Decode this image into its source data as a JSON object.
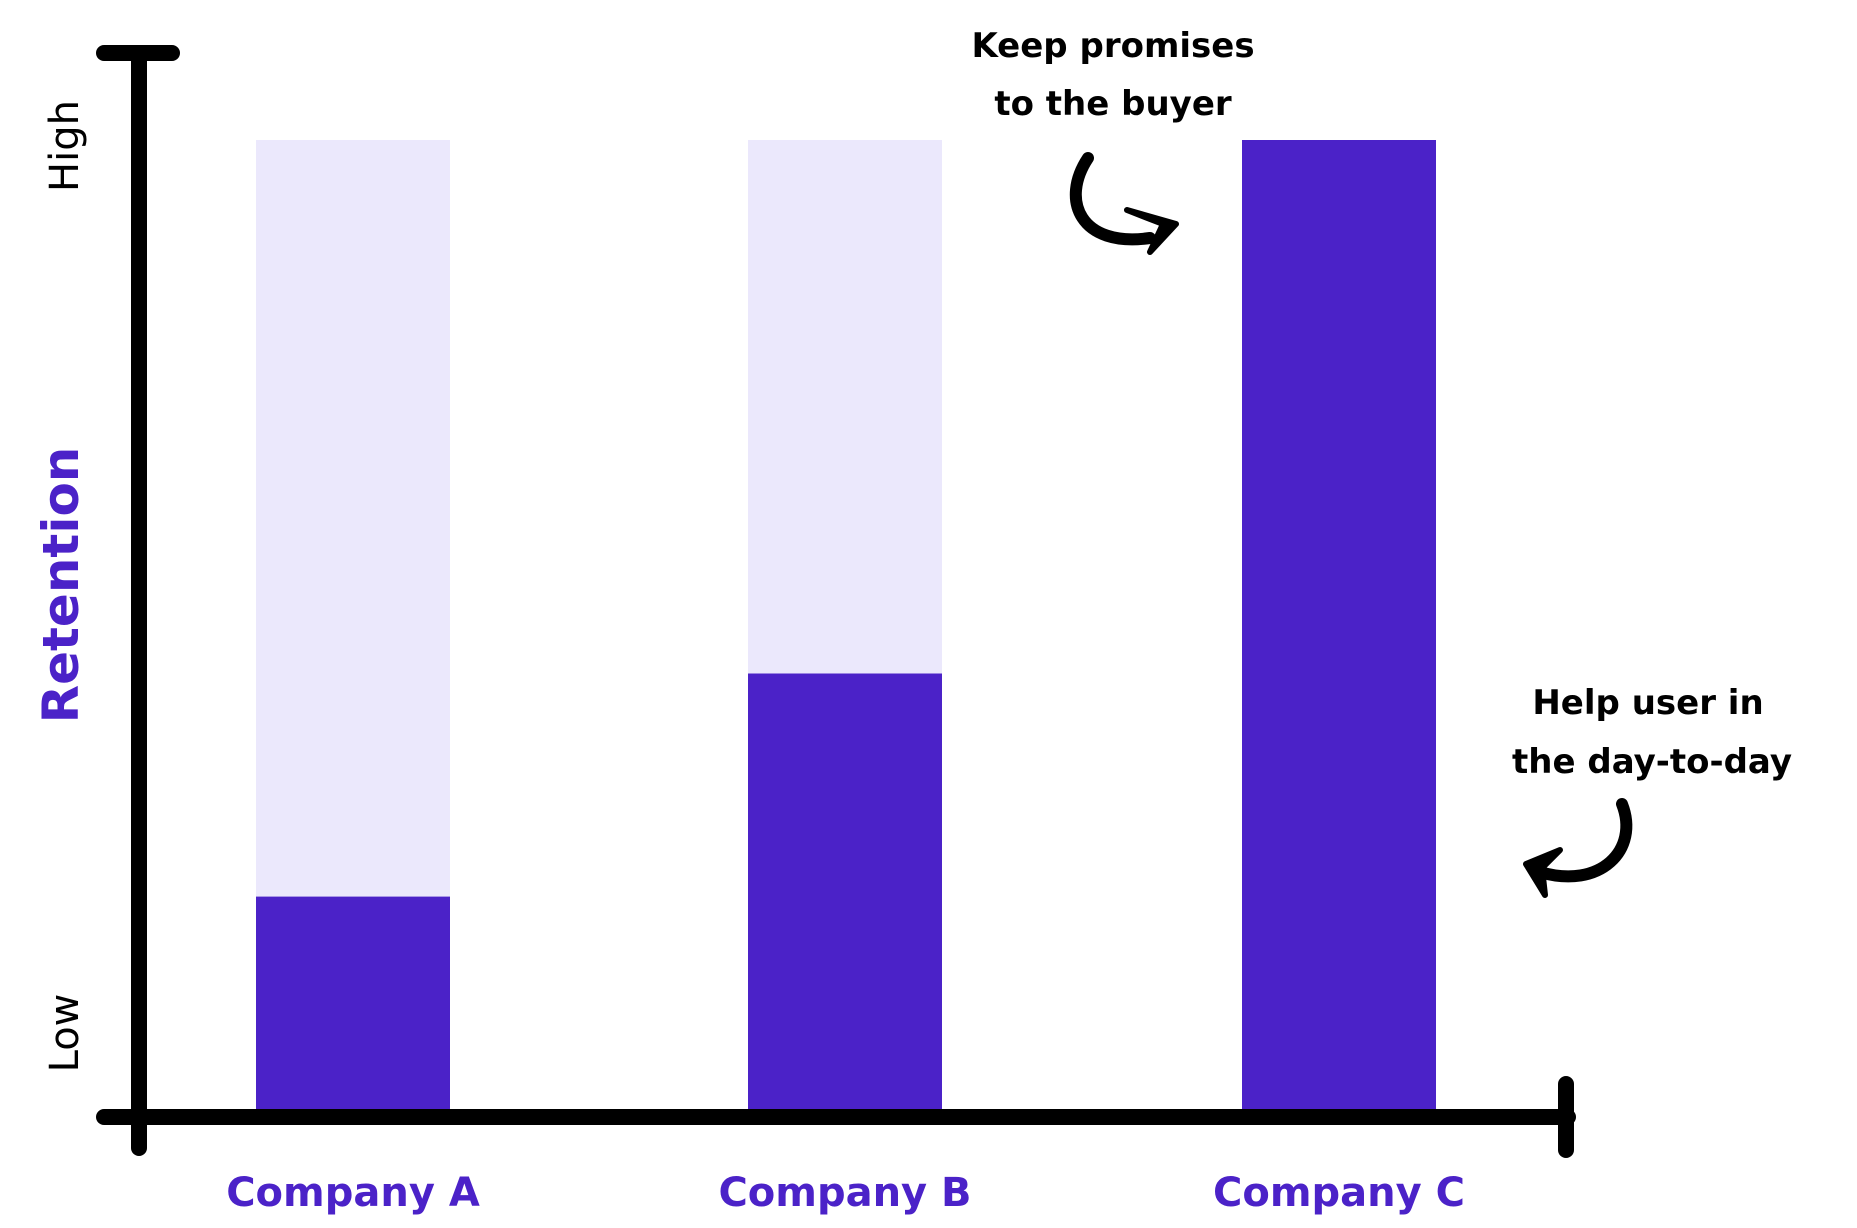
{
  "colors": {
    "bar_fill": "#4b22c8",
    "bar_track": "#ebe8fc",
    "axis": "#000000",
    "label": "#4b22c8"
  },
  "chart_data": {
    "type": "bar",
    "stacked_track": true,
    "categories": [
      "Company A",
      "Company B",
      "Company C"
    ],
    "values": [
      0.22,
      0.45,
      1.0
    ],
    "ylabel": "Retention",
    "xlabel": "",
    "title": "",
    "ylim": [
      0,
      1
    ],
    "yticks": {
      "low": "Low",
      "high": "High"
    },
    "grid": false,
    "legend": "none",
    "annotations": [
      {
        "lines": [
          "Keep promises",
          "to the buyer"
        ],
        "points_to": "Company C"
      },
      {
        "lines": [
          "Help user in",
          "the day-to-day"
        ],
        "points_to": "Company C"
      }
    ]
  }
}
